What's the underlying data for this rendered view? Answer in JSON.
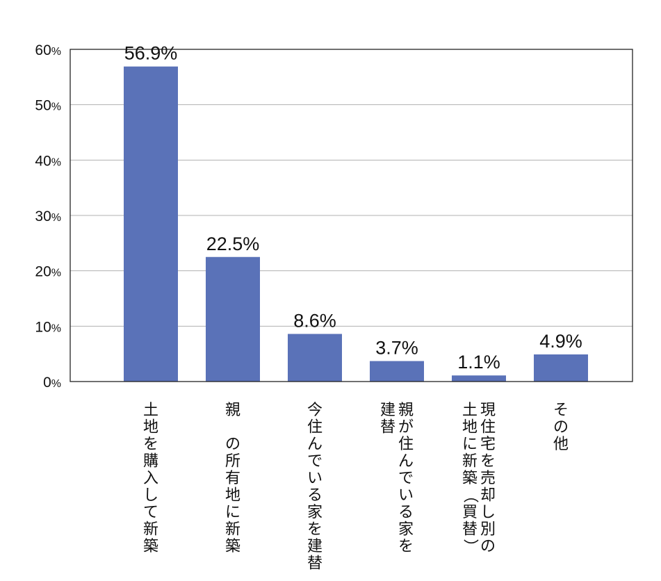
{
  "chart_data": {
    "type": "bar",
    "categories": [
      "土地を購入して新築",
      "親の所有地に新築",
      "今住んでいる家を建替",
      "親が住んでいる家を建替",
      "現住宅を売却し別の土地に新築（買替）",
      "その他"
    ],
    "category_lines": [
      [
        "土地を購入して新築"
      ],
      [
        "親 の所有地に新築"
      ],
      [
        "今住んでいる家を建替"
      ],
      [
        "親が住んでいる家を",
        "建替"
      ],
      [
        "現住宅を売却し別の",
        "土地に新築（買替）"
      ],
      [
        "その他"
      ]
    ],
    "values": [
      56.9,
      22.5,
      8.6,
      3.7,
      1.1,
      4.9
    ],
    "data_labels": [
      "56.9%",
      "22.5%",
      "8.6%",
      "3.7%",
      "1.1%",
      "4.9%"
    ],
    "ylim": [
      0,
      60
    ],
    "yticks": [
      0,
      10,
      20,
      30,
      40,
      50,
      60
    ],
    "ytick_labels": [
      "0%",
      "10%",
      "20%",
      "30%",
      "40%",
      "50%",
      "60%"
    ],
    "bar_color": "#5a72b8",
    "grid": true,
    "title": "",
    "xlabel": "",
    "ylabel": ""
  }
}
